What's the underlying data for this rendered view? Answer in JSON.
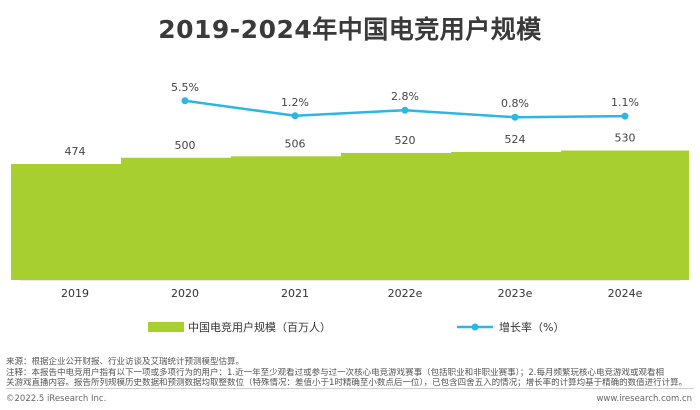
{
  "title": "2019-2024年中国电竞用户规模",
  "chart_data": {
    "type": "bar",
    "categories": [
      "2019",
      "2020",
      "2021",
      "2022e",
      "2023e",
      "2024e"
    ],
    "series": [
      {
        "name": "中国电竞用户规模（百万人）",
        "type": "bar",
        "values": [
          474,
          500,
          506,
          520,
          524,
          530
        ],
        "labels": [
          "474",
          "500",
          "506",
          "520",
          "524",
          "530"
        ],
        "color": "#a6cf2f"
      },
      {
        "name": "增长率（%）",
        "type": "line",
        "values": [
          null,
          5.5,
          1.2,
          2.8,
          0.8,
          1.1
        ],
        "labels": [
          "",
          "5.5%",
          "1.2%",
          "2.8%",
          "0.8%",
          "1.1%"
        ],
        "color": "#2ab7e6"
      }
    ],
    "grid": false,
    "legend_position": "bottom"
  },
  "notes": {
    "source": "来源：根据企业公开财报、行业访谈及艾瑞统计预测模型估算。",
    "note_line1": "注释：本报告中电竞用户指有以下一项或多项行为的用户：1.近一年至少观看过或参与过一次核心电竞游戏赛事（包括职业和非职业赛事）；2.每月频繁玩核心电竞游戏或观看相",
    "note_line2": "关游戏直播内容。报告所列规模历史数据和预测数据均取整数位（特殊情况：差值小于1时精确至小数点后一位），已包含四舍五入的情况；增长率的计算均基于精确的数值进行计算。"
  },
  "footer": {
    "copyright": "©2022.5 iResearch Inc.",
    "website": "www.iresearch.com.cn"
  }
}
